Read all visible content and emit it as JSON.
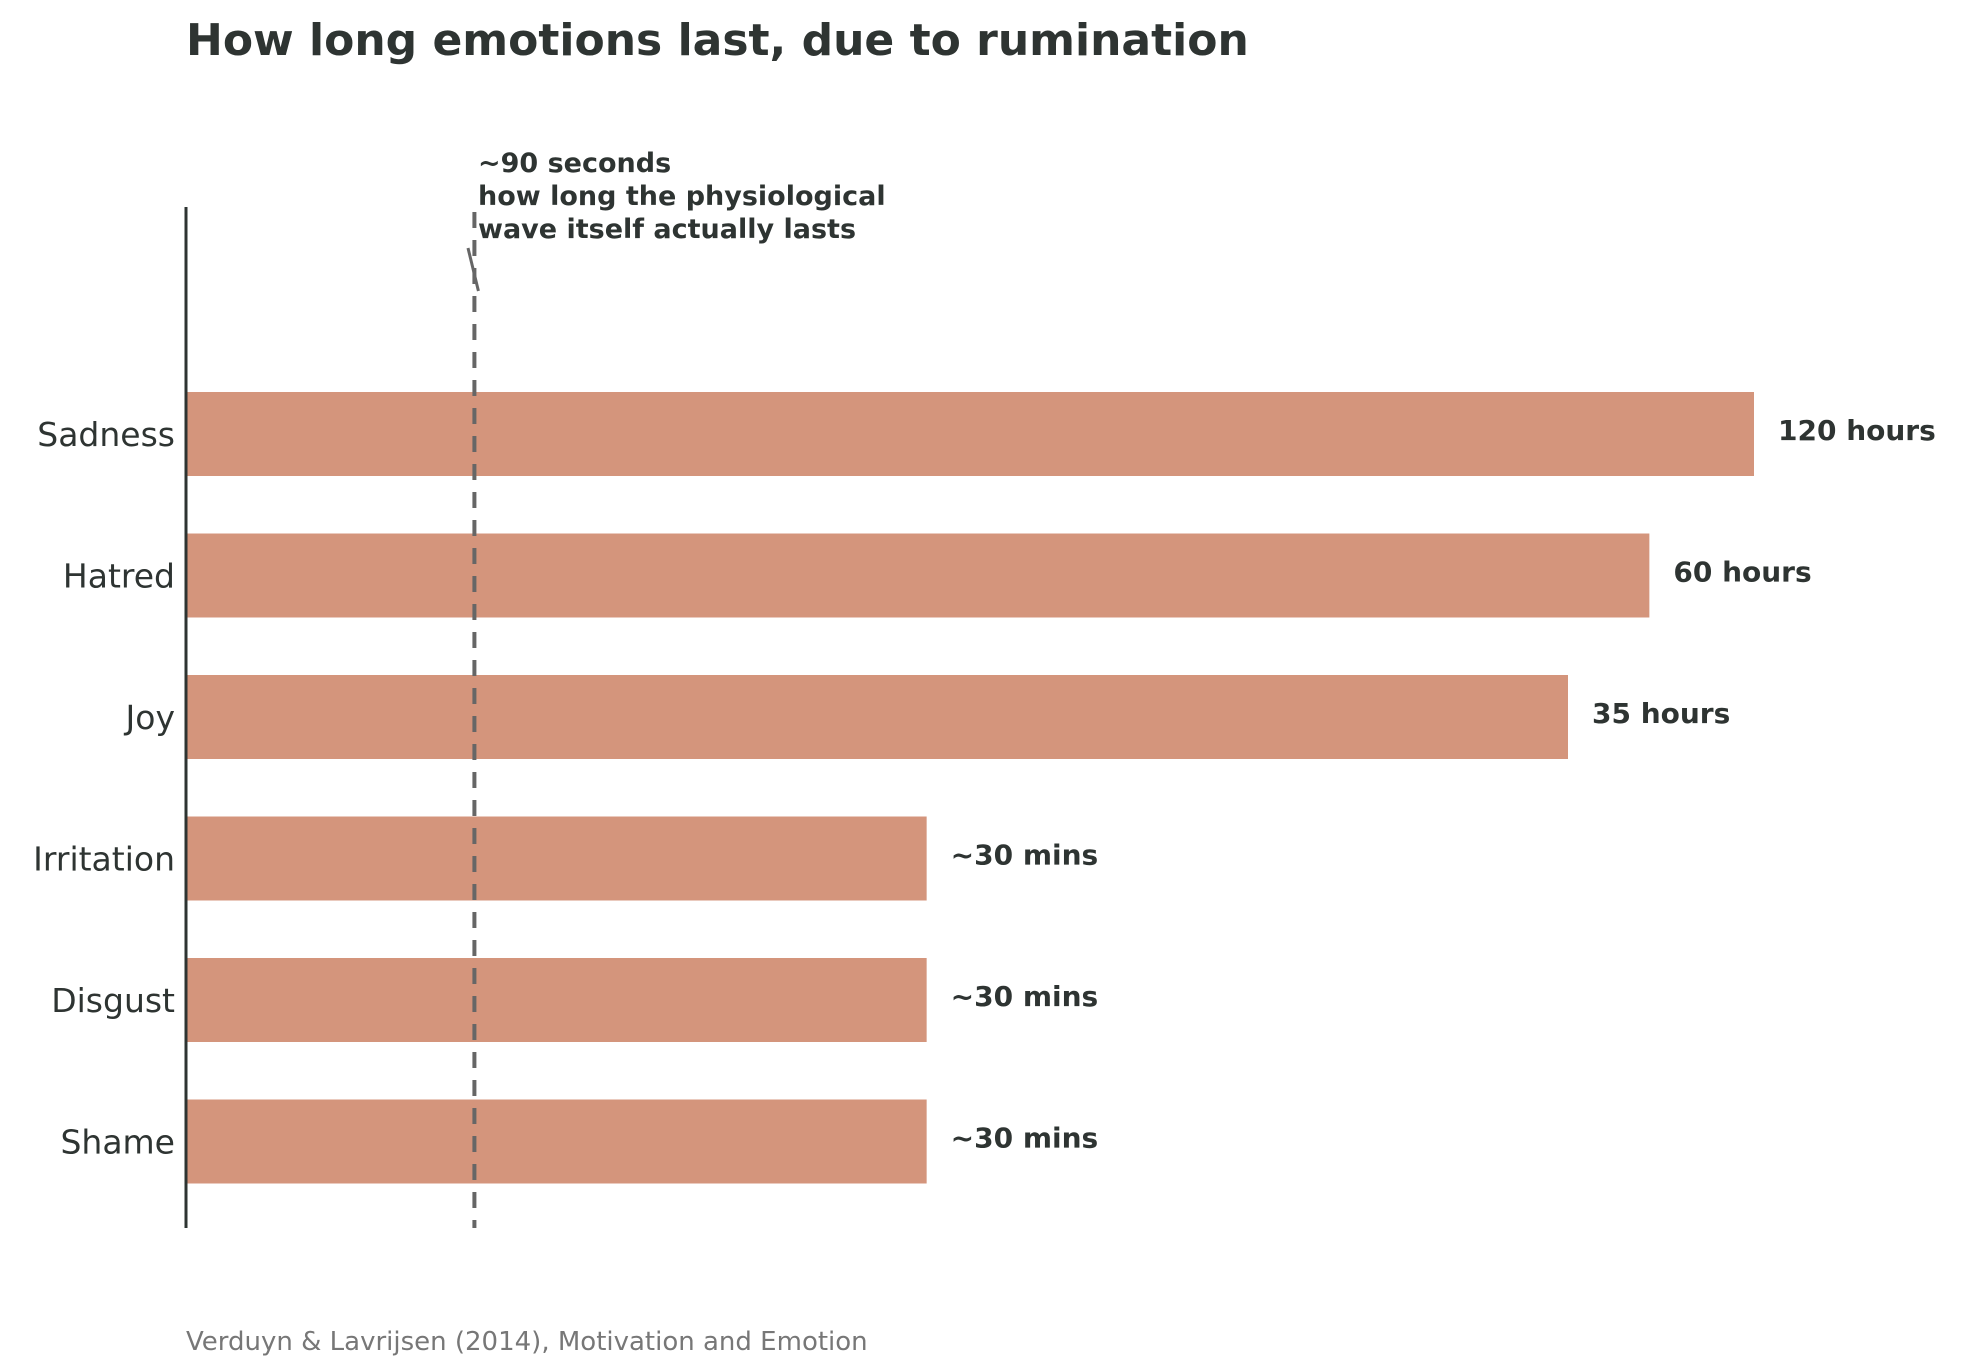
{
  "chart_data": {
    "type": "bar",
    "orientation": "horizontal",
    "title": "How long emotions last, due to rumination",
    "xlabel": "",
    "ylabel": "",
    "categories": [
      "Sadness",
      "Hatred",
      "Joy",
      "Irritation",
      "Disgust",
      "Shame"
    ],
    "values_hours": [
      120,
      60,
      35,
      0.5,
      0.5,
      0.5
    ],
    "value_labels": [
      "120 hours",
      "60 hours",
      "35 hours",
      "~30 mins",
      "~30 mins",
      "~30 mins"
    ],
    "x_scale": "log",
    "x_axis_visible": false,
    "grid": false,
    "legend": "none",
    "reference_line": {
      "value_hours": 0.025,
      "style": "dashed",
      "annotation": [
        "~90 seconds",
        "how long the physiological",
        "wave itself actually lasts"
      ]
    },
    "source": "Verduyn & Lavrijsen (2014), Motivation and Emotion",
    "colors": {
      "bar": "#d4957c",
      "text": "#2e3432",
      "axis": "#2e3432",
      "reference_line": "#666666",
      "source": "#777777"
    }
  }
}
